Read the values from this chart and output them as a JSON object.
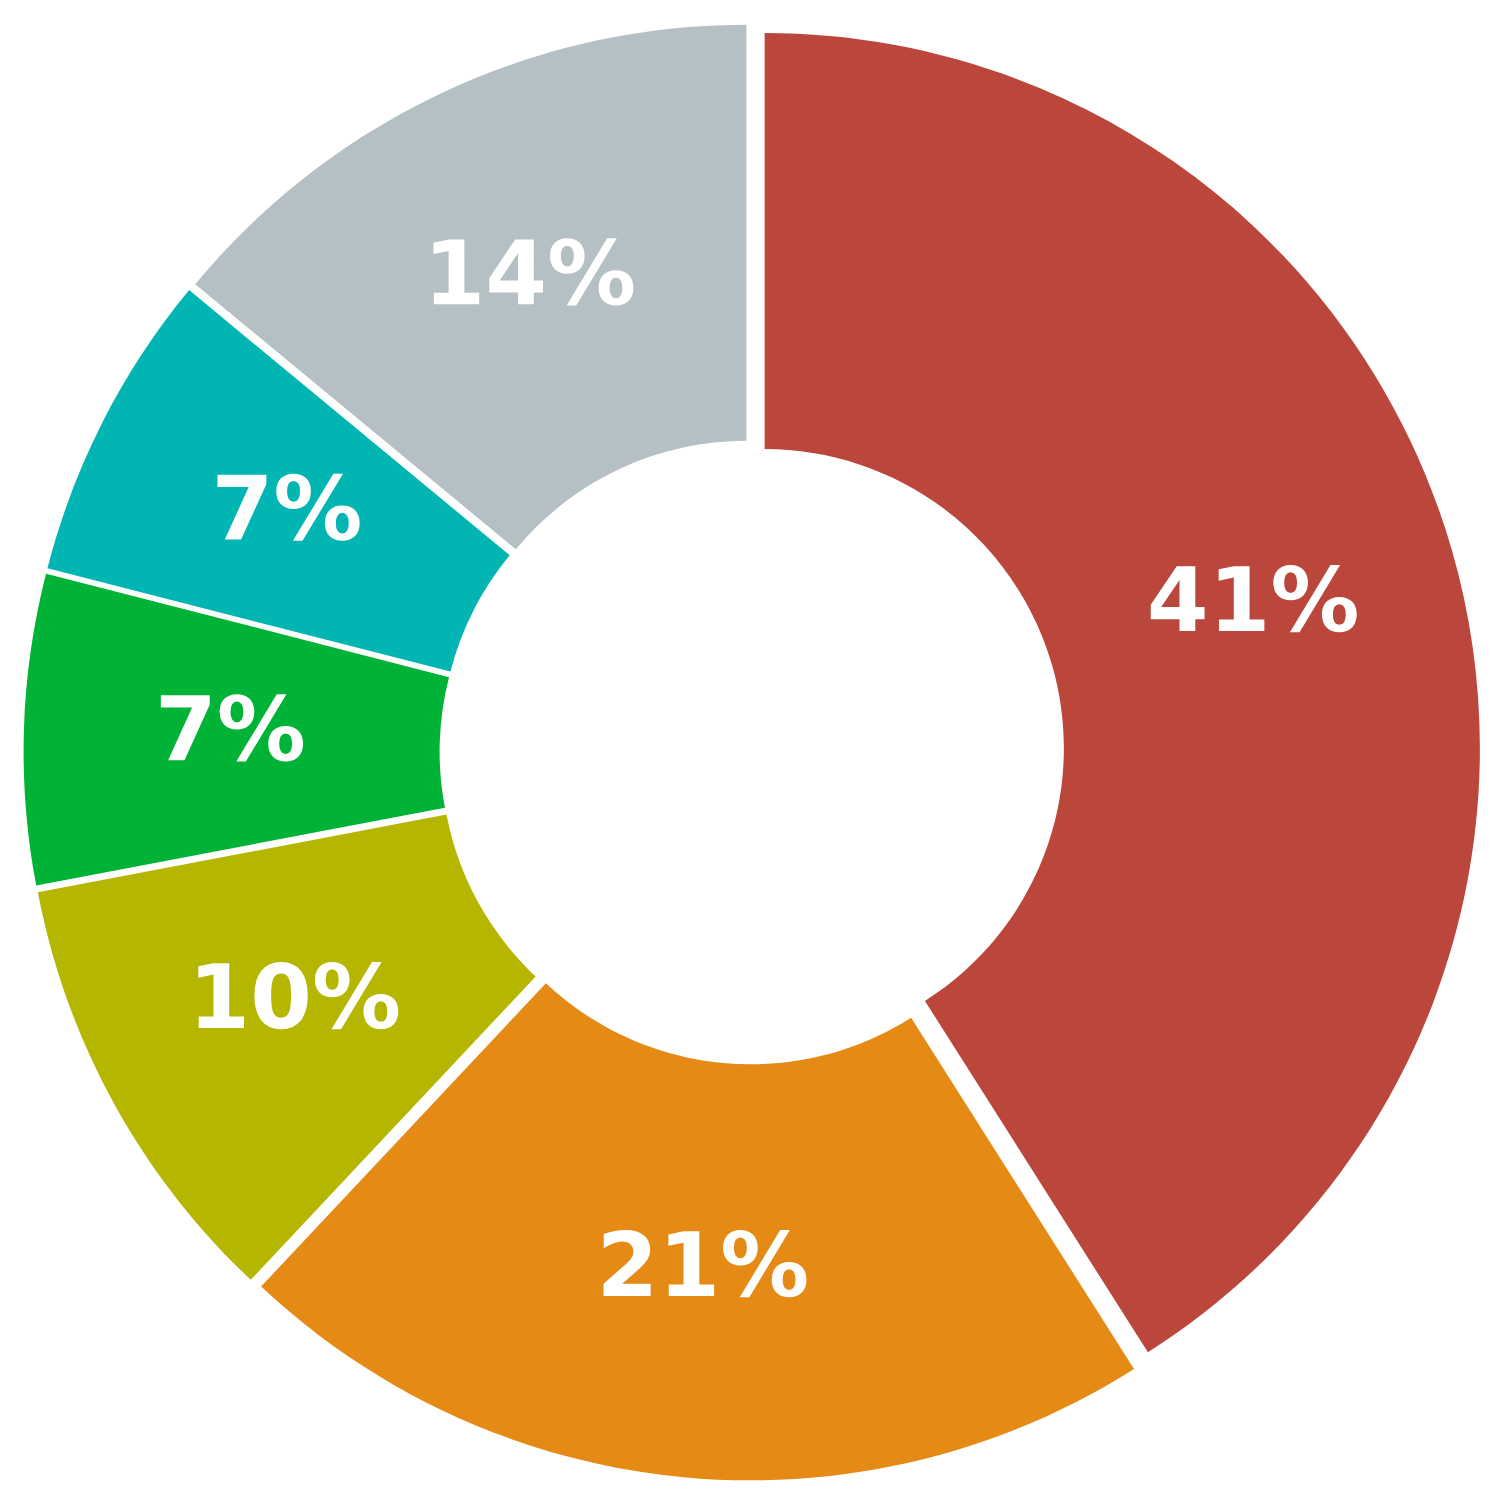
{
  "chart_data": {
    "type": "donut",
    "categories": [
      null,
      null,
      null,
      null,
      null,
      null
    ],
    "values": [
      41,
      21,
      10,
      7,
      7,
      14
    ],
    "value_labels": [
      "41%",
      "21%",
      "10%",
      "7%",
      "7%",
      "14%"
    ],
    "colors": [
      "#bb473c",
      "#e58a15",
      "#b4b600",
      "#00b336",
      "#00b5b2",
      "#b5c0c5"
    ]
  }
}
